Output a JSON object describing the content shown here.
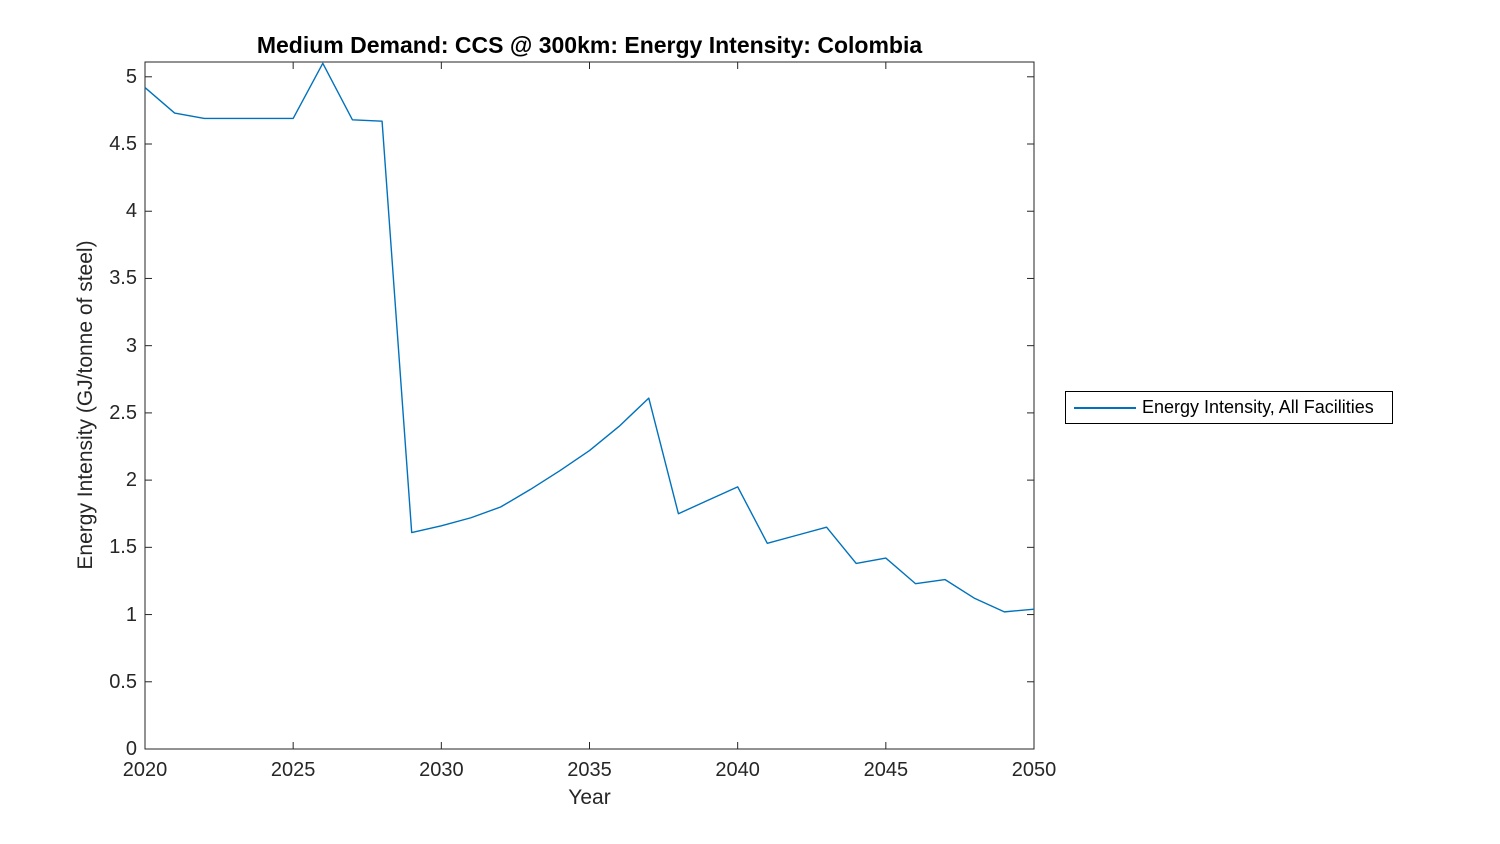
{
  "figure": {
    "background": "#ffffff"
  },
  "chart_data": {
    "type": "line",
    "title": "Medium Demand: CCS @ 300km: Energy Intensity: Colombia",
    "xlabel": "Year",
    "ylabel": "Energy Intensity (GJ/tonne of steel)",
    "xlim": [
      2020,
      2050
    ],
    "ylim": [
      0,
      5.11
    ],
    "xticks": [
      2020,
      2025,
      2030,
      2035,
      2040,
      2045,
      2050
    ],
    "yticks": [
      0,
      0.5,
      1,
      1.5,
      2,
      2.5,
      3,
      3.5,
      4,
      4.5,
      5
    ],
    "grid": false,
    "box": true,
    "tick_direction": "in",
    "axis_color": "#262626",
    "legend_position": "outside-right",
    "x": [
      2020,
      2021,
      2022,
      2023,
      2024,
      2025,
      2026,
      2027,
      2028,
      2029,
      2030,
      2031,
      2032,
      2033,
      2034,
      2035,
      2036,
      2037,
      2038,
      2039,
      2040,
      2041,
      2042,
      2043,
      2044,
      2045,
      2046,
      2047,
      2048,
      2049,
      2050
    ],
    "series": [
      {
        "name": "Energy Intensity, All Facilities",
        "color": "#0072BD",
        "values": [
          4.92,
          4.73,
          4.69,
          4.69,
          4.69,
          4.69,
          5.1,
          4.68,
          4.67,
          1.61,
          1.66,
          1.72,
          1.8,
          1.93,
          2.07,
          2.22,
          2.4,
          2.61,
          1.75,
          1.85,
          1.95,
          1.53,
          1.59,
          1.65,
          1.38,
          1.42,
          1.23,
          1.26,
          1.12,
          1.02,
          1.04
        ]
      }
    ]
  }
}
